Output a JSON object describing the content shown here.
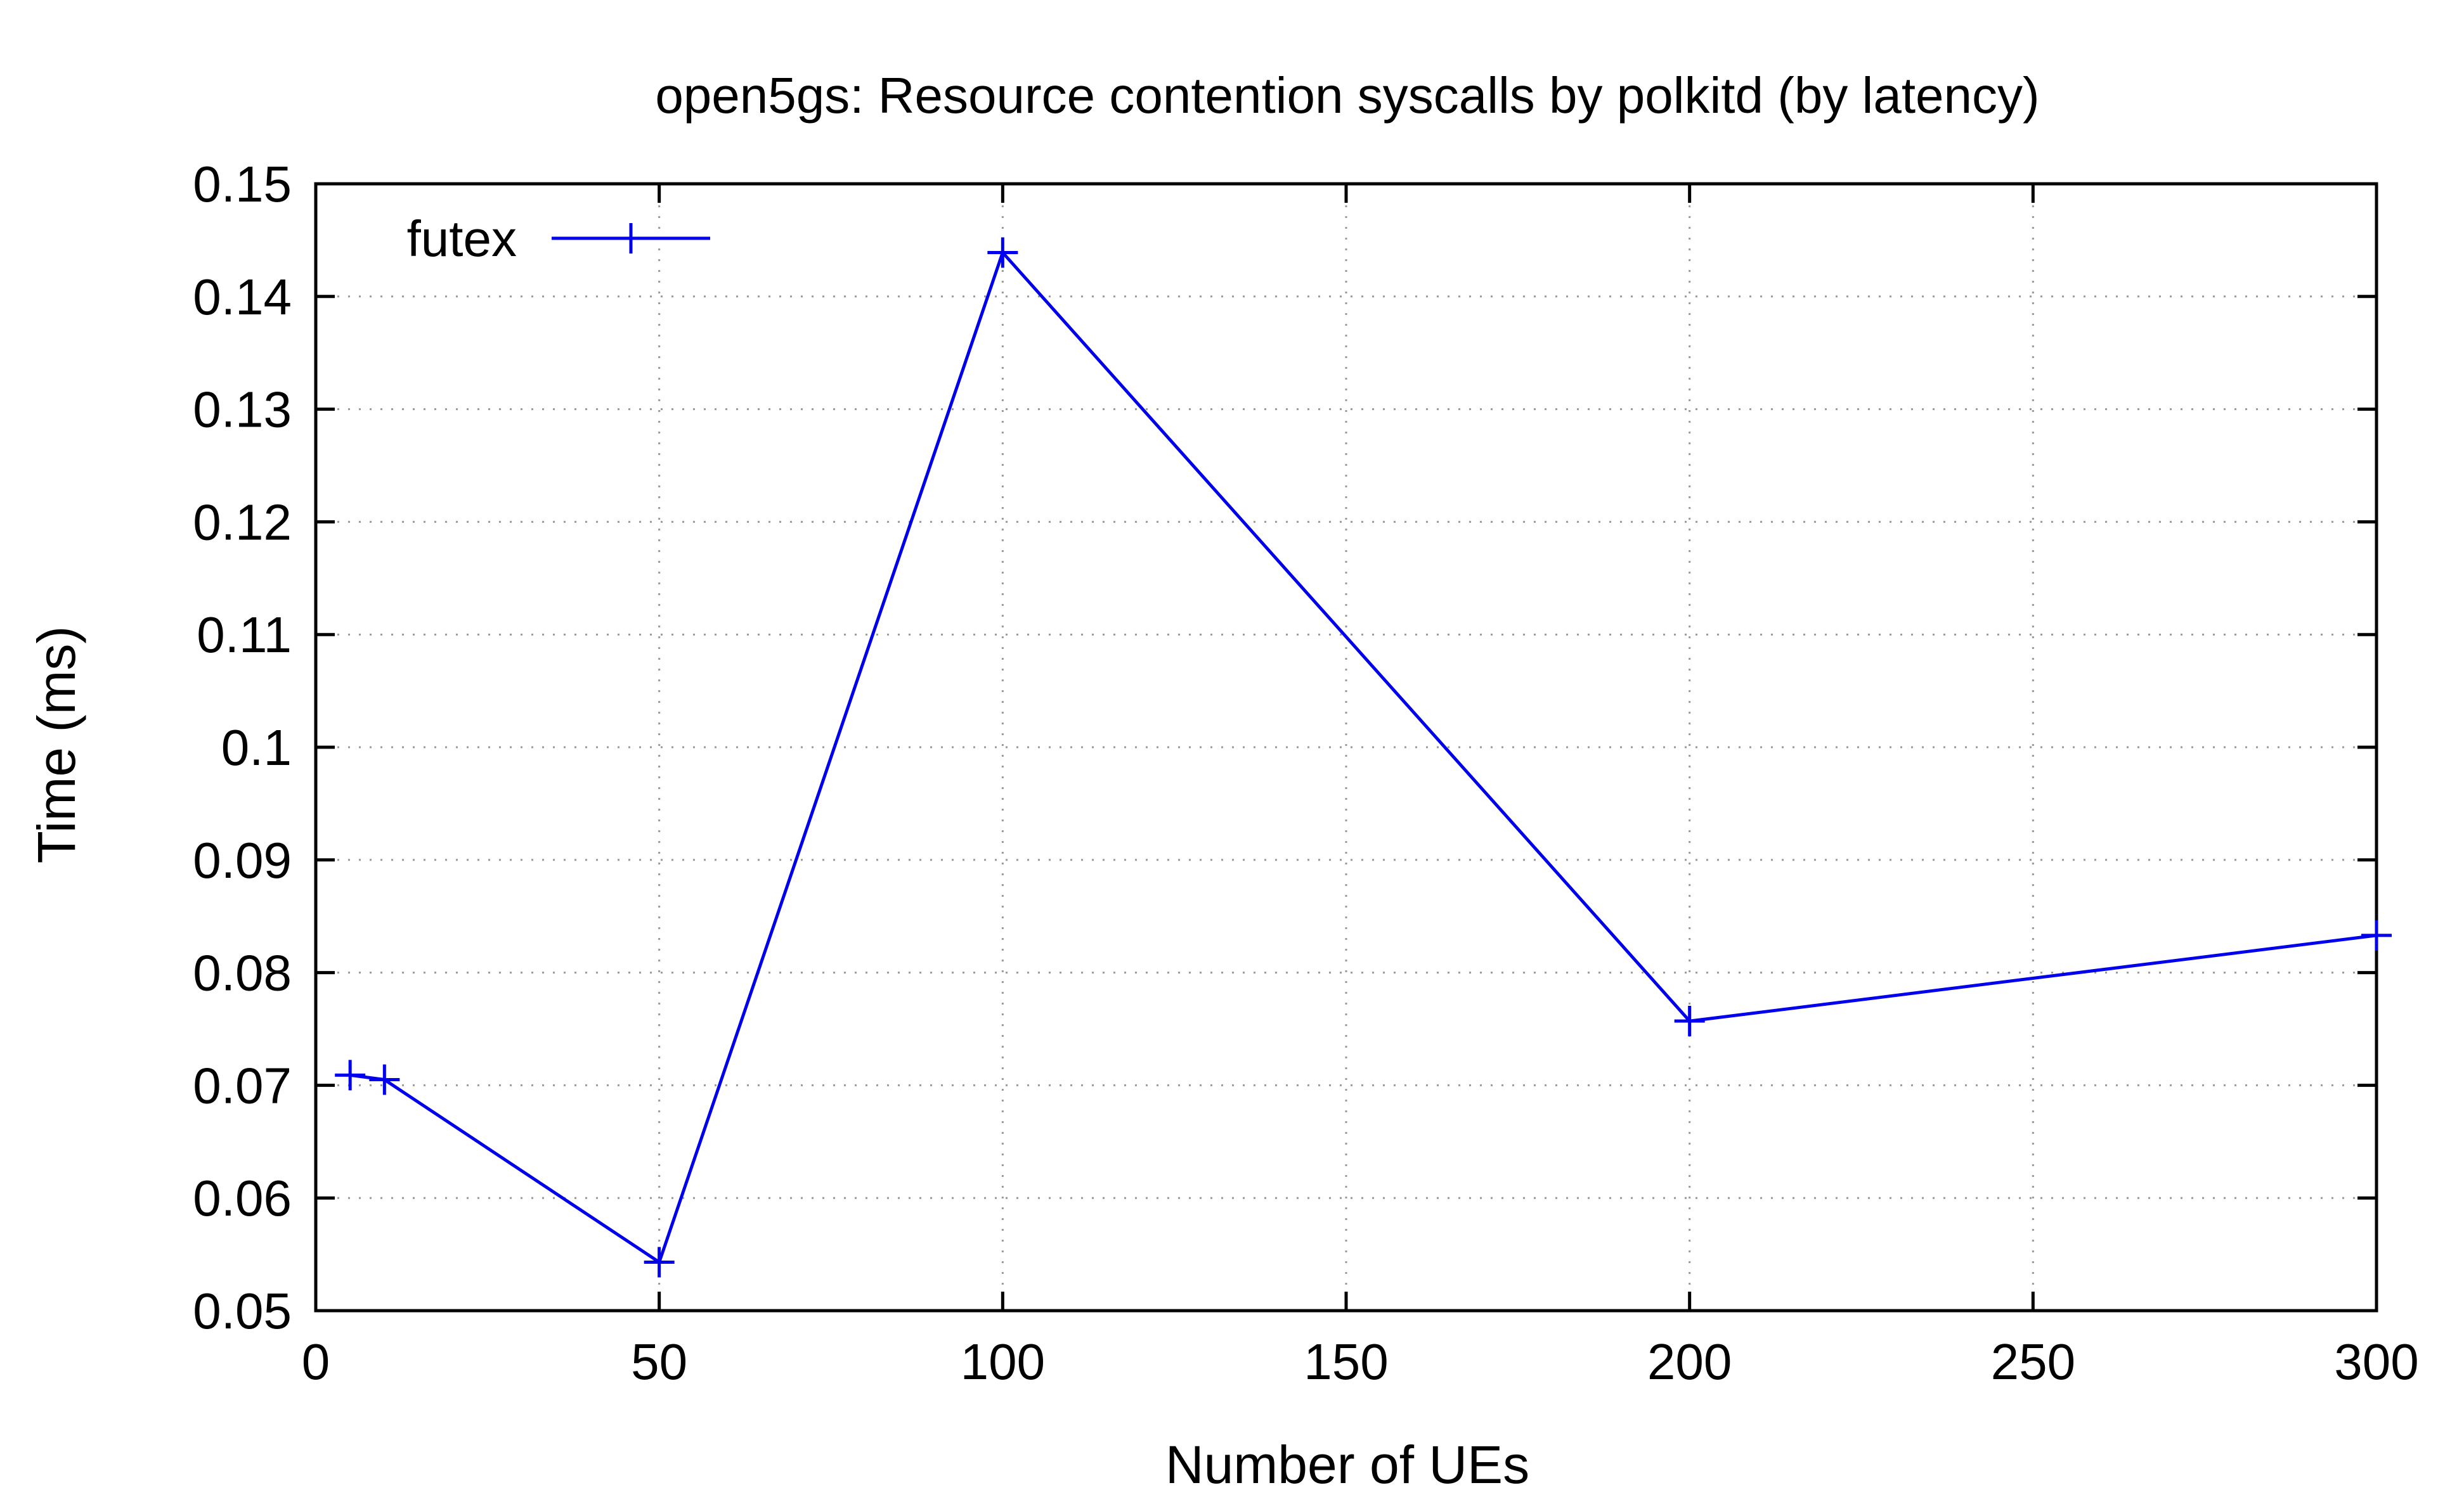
{
  "chart_data": {
    "type": "line",
    "title": "open5gs: Resource contention syscalls by polkitd (by latency)",
    "xlabel": "Number of UEs",
    "ylabel": "Time (ms)",
    "xlim": [
      0,
      300
    ],
    "ylim": [
      0.05,
      0.15
    ],
    "xticks": [
      0,
      50,
      100,
      150,
      200,
      250,
      300
    ],
    "xtick_labels": [
      "0",
      "50",
      "100",
      "150",
      "200",
      "250",
      "300"
    ],
    "yticks": [
      0.05,
      0.06,
      0.07,
      0.08,
      0.09,
      0.1,
      0.11,
      0.12,
      0.13,
      0.14,
      0.15
    ],
    "ytick_labels": [
      "0.05",
      "0.06",
      "0.07",
      "0.08",
      "0.09",
      "0.1",
      "0.11",
      "0.12",
      "0.13",
      "0.14",
      "0.15"
    ],
    "grid": true,
    "legend_position": "top-left",
    "series": [
      {
        "name": "futex",
        "color": "#0000ee",
        "marker": "plus",
        "x": [
          5,
          10,
          50,
          100,
          200,
          300
        ],
        "y": [
          0.0709,
          0.0705,
          0.0543,
          0.1439,
          0.0757,
          0.0833
        ]
      }
    ]
  }
}
